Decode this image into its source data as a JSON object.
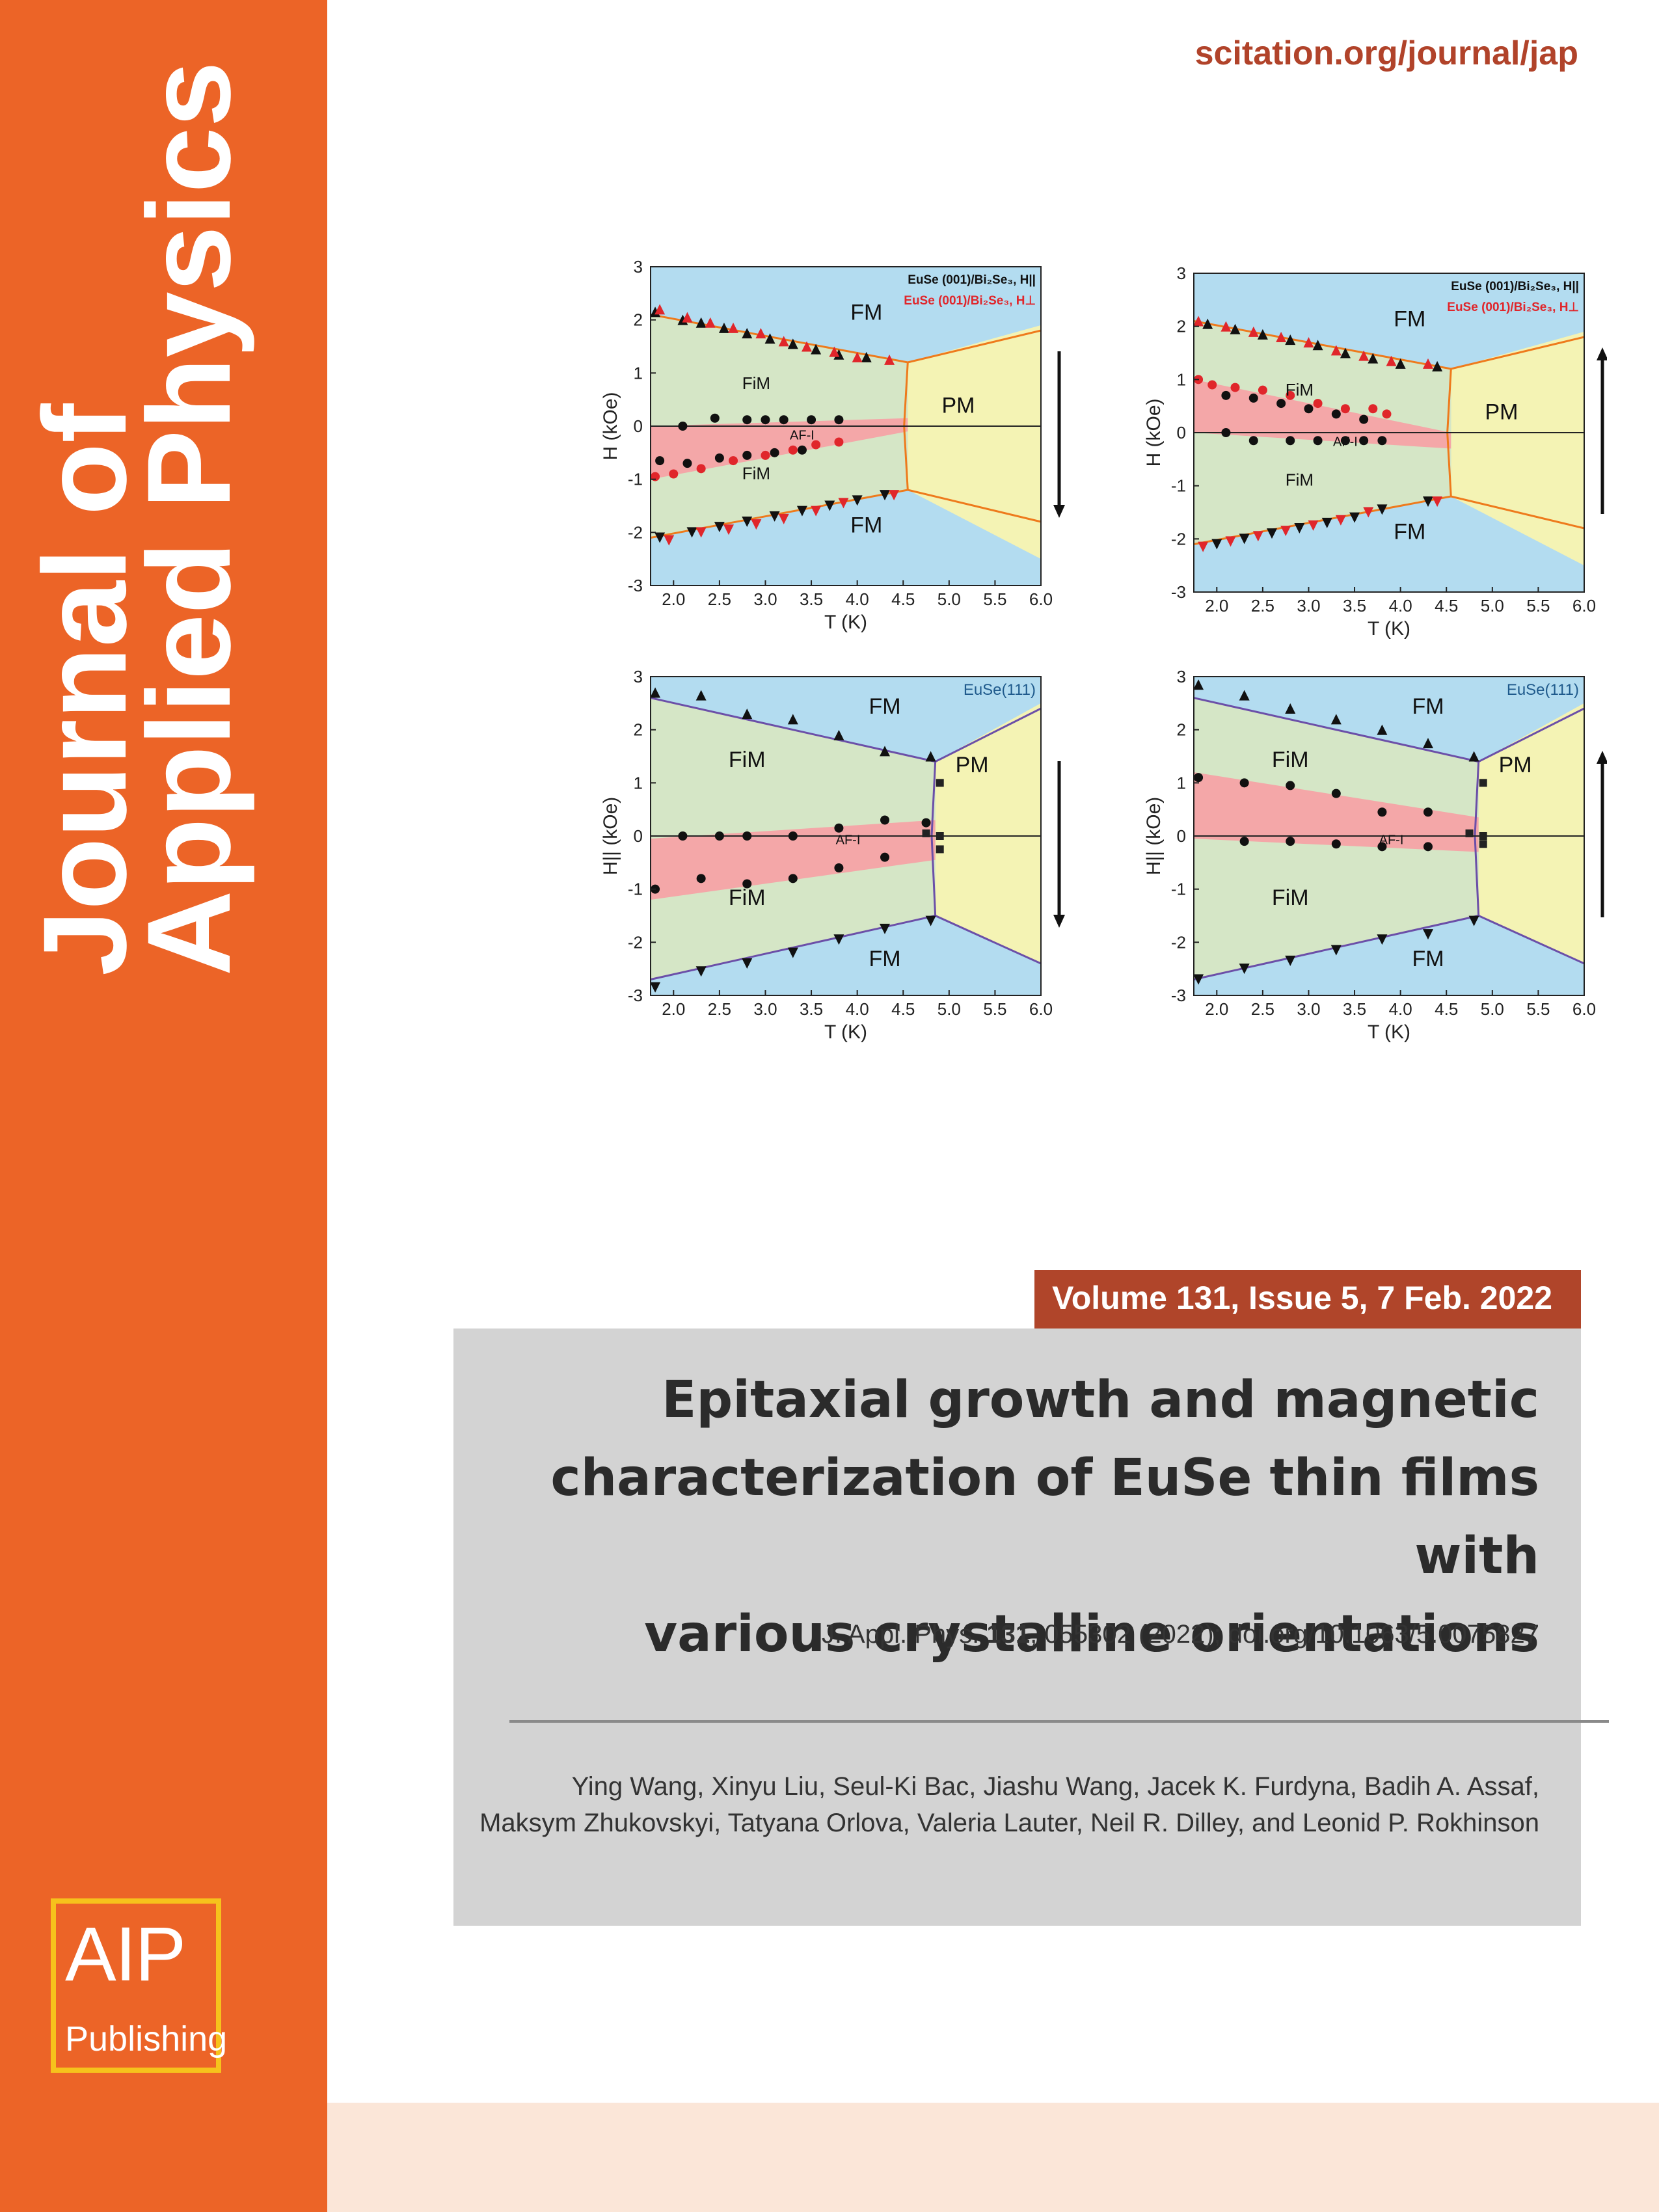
{
  "sidebar": {
    "journal_title_line1": "Journal of",
    "journal_title_line2": "Applied Physics",
    "logo_text": "AIP",
    "logo_subtext": "Publishing",
    "background_color": "#ec6427",
    "logo_border_color": "#f6c21c"
  },
  "header": {
    "url": "scitation.org/journal/jap",
    "url_color": "#b1432a"
  },
  "figure": {
    "panels": [
      {
        "id": "p1",
        "ylabel": "H (kOe)",
        "xlabel": "T (K)",
        "legend": [
          "EuSe (001)/Bi₂Se₃, H||",
          "EuSe (001)/Bi₂Se₃, H⊥"
        ],
        "sample_label": "",
        "regions": [
          "FM",
          "FiM",
          "AF-I",
          "PM",
          "FiM",
          "FM"
        ],
        "sweep_arrow": "down"
      },
      {
        "id": "p2",
        "ylabel": "H (kOe)",
        "xlabel": "T (K)",
        "legend": [
          "EuSe (001)/Bi₂Se₃, H||",
          "EuSe (001)/Bi₂Se₃, H⊥"
        ],
        "sample_label": "",
        "regions": [
          "FM",
          "FiM",
          "AF-I",
          "PM",
          "FiM",
          "FM"
        ],
        "sweep_arrow": "up"
      },
      {
        "id": "p3",
        "ylabel": "H|| (kOe)",
        "xlabel": "T (K)",
        "legend": [],
        "sample_label": "EuSe(111)",
        "regions": [
          "FM",
          "FiM",
          "AF-I",
          "PM",
          "FiM",
          "FM"
        ],
        "sweep_arrow": "down"
      },
      {
        "id": "p4",
        "ylabel": "H|| (kOe)",
        "xlabel": "T (K)",
        "legend": [],
        "sample_label": "EuSe(111)",
        "regions": [
          "FM",
          "FiM",
          "AF-I",
          "PM",
          "FiM",
          "FM"
        ],
        "sweep_arrow": "up"
      }
    ],
    "x_ticks": [
      "2.0",
      "2.5",
      "3.0",
      "3.5",
      "4.0",
      "4.5",
      "5.0",
      "5.5",
      "6.0"
    ],
    "y_ticks": [
      "3",
      "2",
      "1",
      "0",
      "-1",
      "-2",
      "-3"
    ],
    "xlim": [
      1.75,
      6.0
    ],
    "ylim": [
      -3,
      3
    ],
    "colors": {
      "fm": "#b3dcf0",
      "fim": "#d5e6c6",
      "afi": "#f4a7a8",
      "pm": "#f4f3b4",
      "orange_line": "#ee7a1c",
      "purple_line": "#6b4fa8"
    },
    "panel_data": [
      {
        "black_triangles": [
          [
            1.8,
            2.15
          ],
          [
            2.1,
            2.0
          ],
          [
            2.3,
            1.95
          ],
          [
            2.55,
            1.85
          ],
          [
            2.8,
            1.75
          ],
          [
            3.05,
            1.65
          ],
          [
            3.3,
            1.55
          ],
          [
            3.55,
            1.45
          ],
          [
            3.8,
            1.35
          ],
          [
            4.1,
            1.3
          ]
        ],
        "red_triangles": [
          [
            1.85,
            2.2
          ],
          [
            2.15,
            2.05
          ],
          [
            2.4,
            1.95
          ],
          [
            2.65,
            1.85
          ],
          [
            2.95,
            1.75
          ],
          [
            3.2,
            1.6
          ],
          [
            3.45,
            1.5
          ],
          [
            3.75,
            1.4
          ],
          [
            4.0,
            1.3
          ],
          [
            4.35,
            1.25
          ]
        ],
        "black_circles": [
          [
            2.1,
            0.0
          ],
          [
            2.45,
            0.15
          ],
          [
            2.8,
            0.12
          ],
          [
            3.0,
            0.12
          ],
          [
            3.2,
            0.12
          ],
          [
            3.5,
            0.12
          ],
          [
            3.8,
            0.12
          ],
          [
            1.85,
            -0.65
          ],
          [
            2.15,
            -0.7
          ],
          [
            2.5,
            -0.6
          ],
          [
            2.8,
            -0.55
          ],
          [
            3.1,
            -0.5
          ],
          [
            3.4,
            -0.45
          ]
        ],
        "red_circles": [
          [
            1.8,
            -0.95
          ],
          [
            2.0,
            -0.9
          ],
          [
            2.3,
            -0.8
          ],
          [
            2.65,
            -0.65
          ],
          [
            3.0,
            -0.55
          ],
          [
            3.3,
            -0.45
          ],
          [
            3.55,
            -0.35
          ],
          [
            3.8,
            -0.3
          ]
        ],
        "black_down_triangles": [
          [
            1.85,
            -2.1
          ],
          [
            2.2,
            -2.0
          ],
          [
            2.5,
            -1.9
          ],
          [
            2.8,
            -1.8
          ],
          [
            3.1,
            -1.7
          ],
          [
            3.4,
            -1.6
          ],
          [
            3.7,
            -1.5
          ],
          [
            4.0,
            -1.4
          ],
          [
            4.3,
            -1.3
          ]
        ],
        "red_down_triangles": [
          [
            1.95,
            -2.15
          ],
          [
            2.3,
            -2.0
          ],
          [
            2.6,
            -1.95
          ],
          [
            2.9,
            -1.85
          ],
          [
            3.2,
            -1.75
          ],
          [
            3.55,
            -1.6
          ],
          [
            3.85,
            -1.45
          ],
          [
            4.4,
            -1.3
          ]
        ],
        "black_squares": []
      },
      {
        "black_triangles": [
          [
            1.9,
            2.05
          ],
          [
            2.2,
            1.95
          ],
          [
            2.5,
            1.85
          ],
          [
            2.8,
            1.75
          ],
          [
            3.1,
            1.65
          ],
          [
            3.4,
            1.5
          ],
          [
            3.7,
            1.4
          ],
          [
            4.0,
            1.3
          ],
          [
            4.4,
            1.25
          ]
        ],
        "red_triangles": [
          [
            1.8,
            2.1
          ],
          [
            2.1,
            2.0
          ],
          [
            2.4,
            1.9
          ],
          [
            2.7,
            1.8
          ],
          [
            3.0,
            1.7
          ],
          [
            3.3,
            1.55
          ],
          [
            3.6,
            1.45
          ],
          [
            3.9,
            1.35
          ],
          [
            4.3,
            1.3
          ]
        ],
        "black_circles": [
          [
            2.1,
            0.7
          ],
          [
            2.4,
            0.65
          ],
          [
            2.7,
            0.55
          ],
          [
            3.0,
            0.45
          ],
          [
            3.3,
            0.35
          ],
          [
            3.6,
            0.25
          ],
          [
            2.1,
            0.0
          ],
          [
            2.4,
            -0.15
          ],
          [
            2.8,
            -0.15
          ],
          [
            3.1,
            -0.15
          ],
          [
            3.4,
            -0.15
          ],
          [
            3.6,
            -0.15
          ],
          [
            3.8,
            -0.15
          ]
        ],
        "red_circles": [
          [
            1.8,
            1.0
          ],
          [
            1.95,
            0.9
          ],
          [
            2.2,
            0.85
          ],
          [
            2.5,
            0.8
          ],
          [
            2.8,
            0.7
          ],
          [
            3.1,
            0.55
          ],
          [
            3.4,
            0.45
          ],
          [
            3.7,
            0.45
          ],
          [
            3.85,
            0.35
          ]
        ],
        "black_down_triangles": [
          [
            2.0,
            -2.1
          ],
          [
            2.3,
            -2.0
          ],
          [
            2.6,
            -1.9
          ],
          [
            2.9,
            -1.8
          ],
          [
            3.2,
            -1.7
          ],
          [
            3.5,
            -1.6
          ],
          [
            3.8,
            -1.45
          ],
          [
            4.3,
            -1.3
          ]
        ],
        "red_down_triangles": [
          [
            1.85,
            -2.15
          ],
          [
            2.15,
            -2.05
          ],
          [
            2.45,
            -1.95
          ],
          [
            2.75,
            -1.85
          ],
          [
            3.05,
            -1.75
          ],
          [
            3.35,
            -1.65
          ],
          [
            3.65,
            -1.5
          ],
          [
            4.4,
            -1.3
          ]
        ],
        "black_squares": []
      },
      {
        "black_triangles": [
          [
            1.8,
            2.7
          ],
          [
            2.3,
            2.65
          ],
          [
            2.8,
            2.3
          ],
          [
            3.3,
            2.2
          ],
          [
            3.8,
            1.9
          ],
          [
            4.3,
            1.6
          ],
          [
            4.8,
            1.5
          ]
        ],
        "red_triangles": [],
        "black_circles": [
          [
            1.8,
            -1.0
          ],
          [
            2.3,
            -0.8
          ],
          [
            2.8,
            -0.9
          ],
          [
            3.3,
            -0.8
          ],
          [
            3.8,
            -0.6
          ],
          [
            4.3,
            -0.4
          ],
          [
            2.1,
            0.0
          ],
          [
            2.5,
            0.0
          ],
          [
            2.8,
            0.0
          ],
          [
            3.3,
            0.0
          ],
          [
            3.8,
            0.15
          ],
          [
            4.3,
            0.3
          ],
          [
            4.75,
            0.25
          ]
        ],
        "red_circles": [],
        "black_down_triangles": [
          [
            1.8,
            -2.85
          ],
          [
            2.3,
            -2.55
          ],
          [
            2.8,
            -2.4
          ],
          [
            3.3,
            -2.2
          ],
          [
            3.8,
            -1.95
          ],
          [
            4.3,
            -1.75
          ],
          [
            4.8,
            -1.6
          ]
        ],
        "red_down_triangles": [],
        "black_squares": [
          [
            4.9,
            1.0
          ],
          [
            4.9,
            0.0
          ],
          [
            4.9,
            -0.25
          ],
          [
            4.75,
            0.05
          ]
        ]
      },
      {
        "black_triangles": [
          [
            1.8,
            2.85
          ],
          [
            2.3,
            2.65
          ],
          [
            2.8,
            2.4
          ],
          [
            3.3,
            2.2
          ],
          [
            3.8,
            2.0
          ],
          [
            4.3,
            1.75
          ],
          [
            4.8,
            1.5
          ]
        ],
        "red_triangles": [],
        "black_circles": [
          [
            1.8,
            1.1
          ],
          [
            2.3,
            1.0
          ],
          [
            2.8,
            0.95
          ],
          [
            3.3,
            0.8
          ],
          [
            3.8,
            0.45
          ],
          [
            4.3,
            0.45
          ],
          [
            2.3,
            -0.1
          ],
          [
            2.8,
            -0.1
          ],
          [
            3.3,
            -0.15
          ],
          [
            3.8,
            -0.2
          ],
          [
            4.3,
            -0.2
          ]
        ],
        "red_circles": [],
        "black_down_triangles": [
          [
            1.8,
            -2.7
          ],
          [
            2.3,
            -2.5
          ],
          [
            2.8,
            -2.35
          ],
          [
            3.3,
            -2.15
          ],
          [
            3.8,
            -1.95
          ],
          [
            4.3,
            -1.85
          ],
          [
            4.8,
            -1.6
          ]
        ],
        "red_down_triangles": [],
        "black_squares": [
          [
            4.9,
            1.0
          ],
          [
            4.9,
            0.0
          ],
          [
            4.75,
            0.05
          ],
          [
            4.9,
            -0.15
          ]
        ]
      }
    ]
  },
  "volume": {
    "text": "Volume 131, Issue 5, 7 Feb. 2022",
    "bar_color": "#b0452a"
  },
  "article": {
    "title_line1": "Epitaxial growth and magnetic",
    "title_line2": "characterization of EuSe thin films with",
    "title_line3": "various crystalline orientations",
    "citation_prefix": "J. Appl. Phys. ",
    "citation_volume": "131",
    "citation_suffix": ", 055302 (2022); doi.org/10.1063/5.0075827",
    "authors_line1": "Ying Wang, Xinyu Liu, Seul-Ki Bac, Jiashu Wang, Jacek K. Furdyna, Badih A. Assaf,",
    "authors_line2": "Maksym Zhukovskyi, Tatyana Orlova, Valeria Lauter, Neil R. Dilley, and Leonid P. Rokhinson"
  }
}
